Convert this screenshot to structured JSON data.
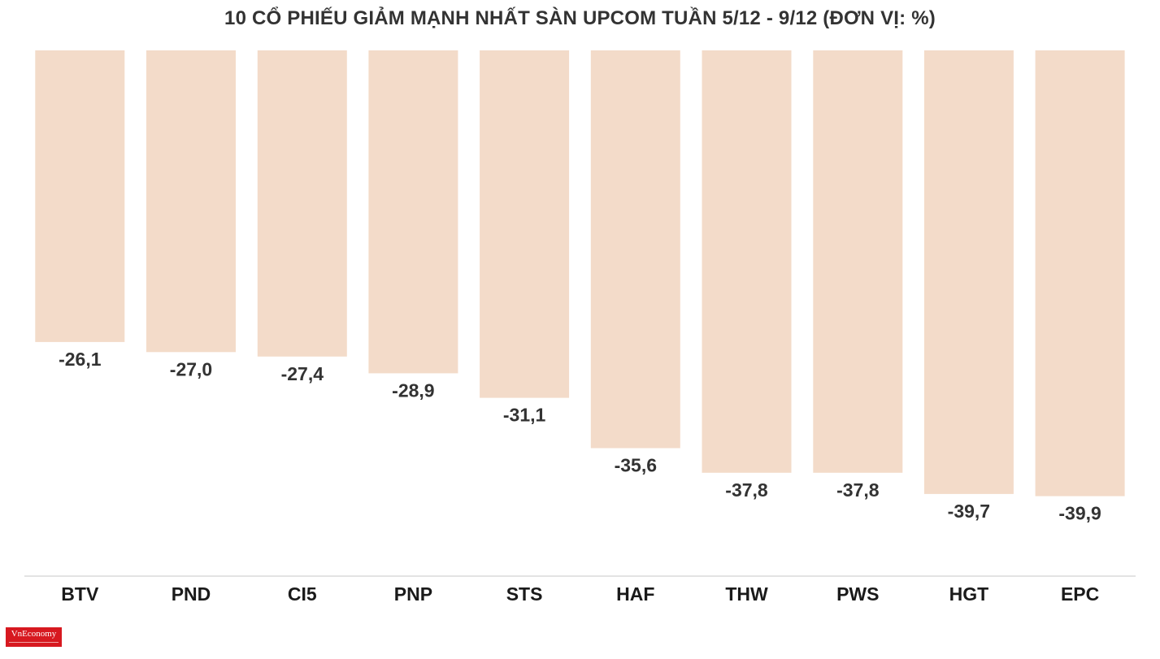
{
  "chart_data": {
    "type": "bar",
    "title": "10 CỔ PHIẾU GIẢM MẠNH NHẤT SÀN UPCOM TUẦN 5/12 - 9/12 (ĐƠN VỊ: %)",
    "categories": [
      "BTV",
      "PND",
      "CI5",
      "PNP",
      "STS",
      "HAF",
      "THW",
      "PWS",
      "HGT",
      "EPC"
    ],
    "values": [
      -26.1,
      -27.0,
      -27.4,
      -28.9,
      -31.1,
      -35.6,
      -37.8,
      -37.8,
      -39.7,
      -39.9
    ],
    "value_labels": [
      "-26,1",
      "-27,0",
      "-27,4",
      "-28,9",
      "-31,1",
      "-35,6",
      "-37,8",
      "-37,8",
      "-39,7",
      "-39,9"
    ],
    "bar_color": "#f3dbc9",
    "axis_color": "#e3e3e3",
    "grid": false,
    "legend": "none",
    "xlabel": "",
    "ylabel": ""
  },
  "logo": {
    "text": "VnEconomy",
    "color": "#d71920"
  }
}
